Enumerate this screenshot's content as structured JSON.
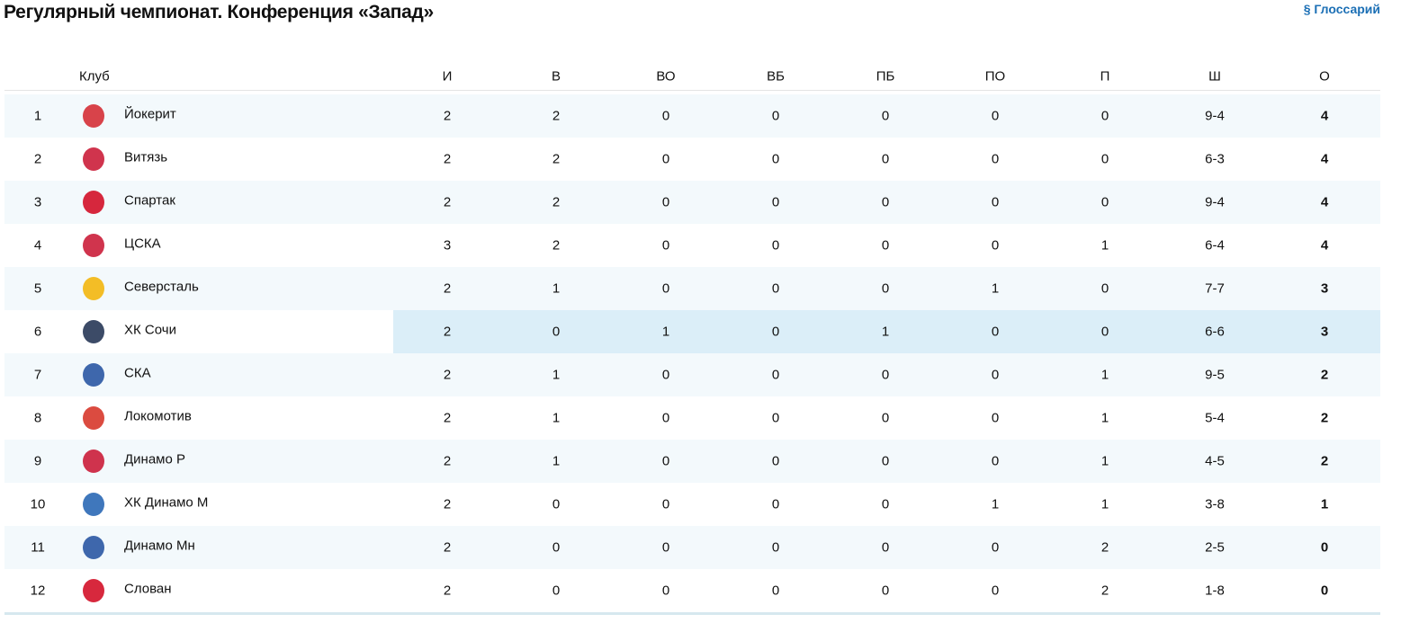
{
  "header": {
    "title": "Регулярный чемпионат. Конференция «Запад»",
    "glossary": "§ Глоссарий"
  },
  "table": {
    "columns": [
      "Клуб",
      "И",
      "В",
      "ВО",
      "ВБ",
      "ПБ",
      "ПО",
      "П",
      "Ш",
      "О"
    ],
    "rows": [
      [
        1,
        "Йокерит",
        2,
        2,
        0,
        0,
        0,
        0,
        0,
        "9-4",
        4
      ],
      [
        2,
        "Витязь",
        2,
        2,
        0,
        0,
        0,
        0,
        0,
        "6-3",
        4
      ],
      [
        3,
        "Спартак",
        2,
        2,
        0,
        0,
        0,
        0,
        0,
        "9-4",
        4
      ],
      [
        4,
        "ЦСКА",
        3,
        2,
        0,
        0,
        0,
        0,
        1,
        "6-4",
        4
      ],
      [
        5,
        "Северсталь",
        2,
        1,
        0,
        0,
        0,
        1,
        0,
        "7-7",
        3
      ],
      [
        6,
        "ХК Сочи",
        2,
        0,
        1,
        0,
        1,
        0,
        0,
        "6-6",
        3
      ],
      [
        7,
        "СКА",
        2,
        1,
        0,
        0,
        0,
        0,
        1,
        "9-5",
        2
      ],
      [
        8,
        "Локомотив",
        2,
        1,
        0,
        0,
        0,
        0,
        1,
        "5-4",
        2
      ],
      [
        9,
        "Динамо Р",
        2,
        1,
        0,
        0,
        0,
        0,
        1,
        "4-5",
        2
      ],
      [
        10,
        "ХК Динамо М",
        2,
        0,
        0,
        0,
        0,
        1,
        1,
        "3-8",
        1
      ],
      [
        11,
        "Динамо Мн",
        2,
        0,
        0,
        0,
        0,
        0,
        2,
        "2-5",
        0
      ],
      [
        12,
        "Слован",
        2,
        0,
        0,
        0,
        0,
        0,
        2,
        "1-8",
        0
      ]
    ]
  }
}
